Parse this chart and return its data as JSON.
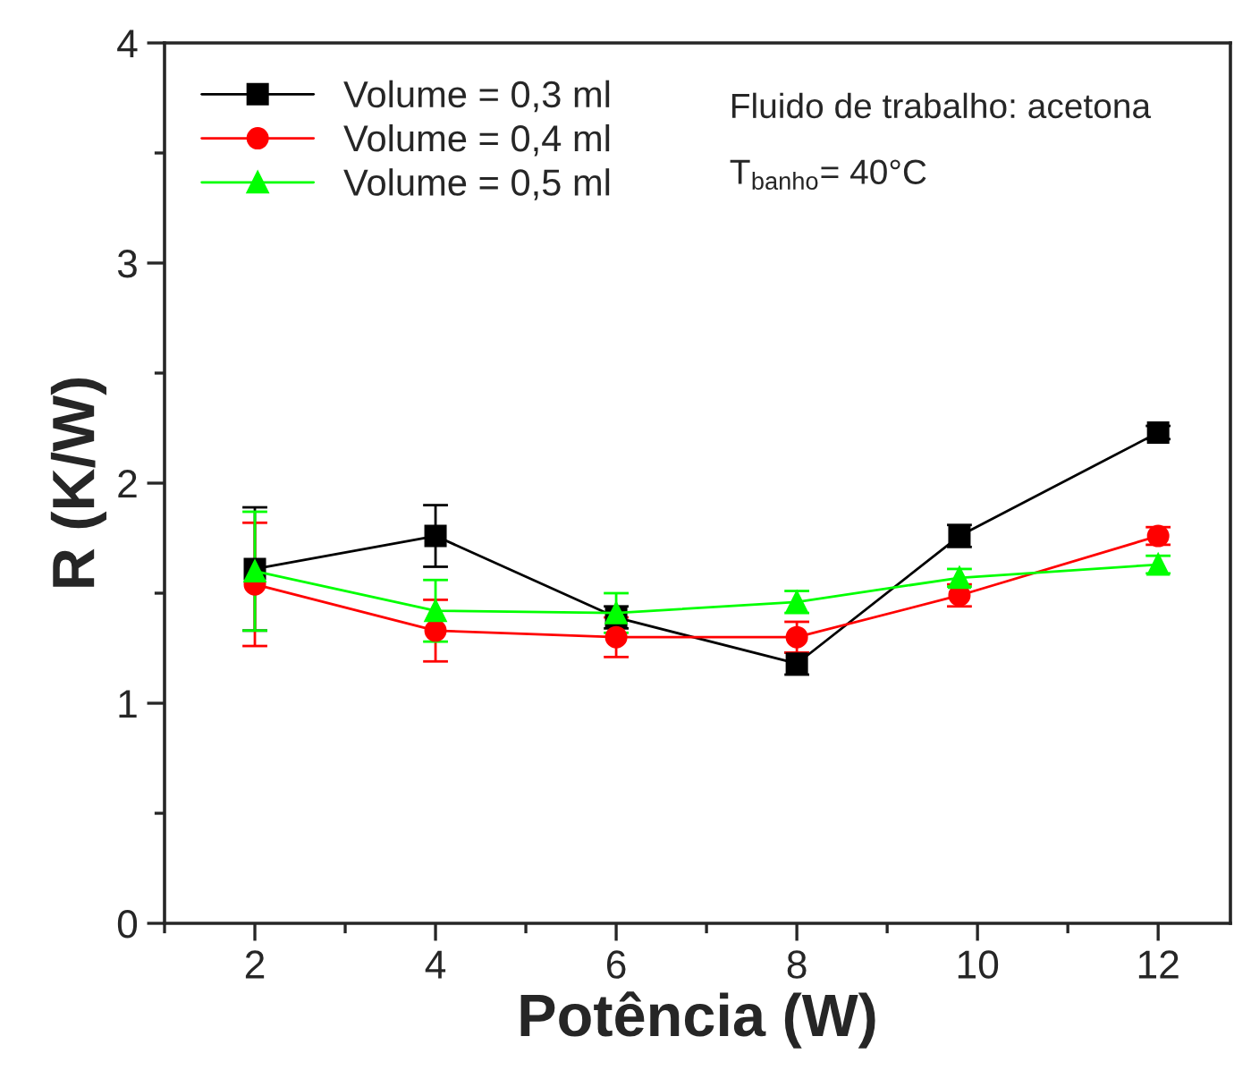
{
  "chart_data": {
    "type": "line",
    "xlabel": "Potência (W)",
    "ylabel": "R (K/W)",
    "x": [
      2,
      4,
      6,
      8,
      9.8,
      12
    ],
    "series": [
      {
        "name": "Volume = 0,3 ml",
        "color": "#000000",
        "marker": "square",
        "values": [
          1.61,
          1.76,
          1.39,
          1.18,
          1.76,
          2.23
        ],
        "errors": [
          0.28,
          0.14,
          0.05,
          0.05,
          0.05,
          0.03
        ]
      },
      {
        "name": "Volume = 0,4 ml",
        "color": "#ff0000",
        "marker": "circle",
        "values": [
          1.54,
          1.33,
          1.3,
          1.3,
          1.49,
          1.76
        ],
        "errors": [
          0.28,
          0.14,
          0.09,
          0.07,
          0.05,
          0.04
        ]
      },
      {
        "name": "Volume = 0,5 ml",
        "color": "#00ff00",
        "marker": "triangle",
        "values": [
          1.6,
          1.42,
          1.41,
          1.46,
          1.57,
          1.63
        ],
        "errors": [
          0.27,
          0.14,
          0.09,
          0.05,
          0.04,
          0.04
        ]
      }
    ],
    "annotations": [
      "Fluido de trabalho: acetona",
      "T$_{banho}$= 40°C"
    ],
    "xlim": [
      1,
      12.8
    ],
    "ylim": [
      0,
      4
    ],
    "xticks": [
      2,
      4,
      6,
      8,
      10,
      12
    ],
    "yticks": [
      0,
      1,
      2,
      3,
      4
    ],
    "grid": false,
    "legend": "top left"
  }
}
